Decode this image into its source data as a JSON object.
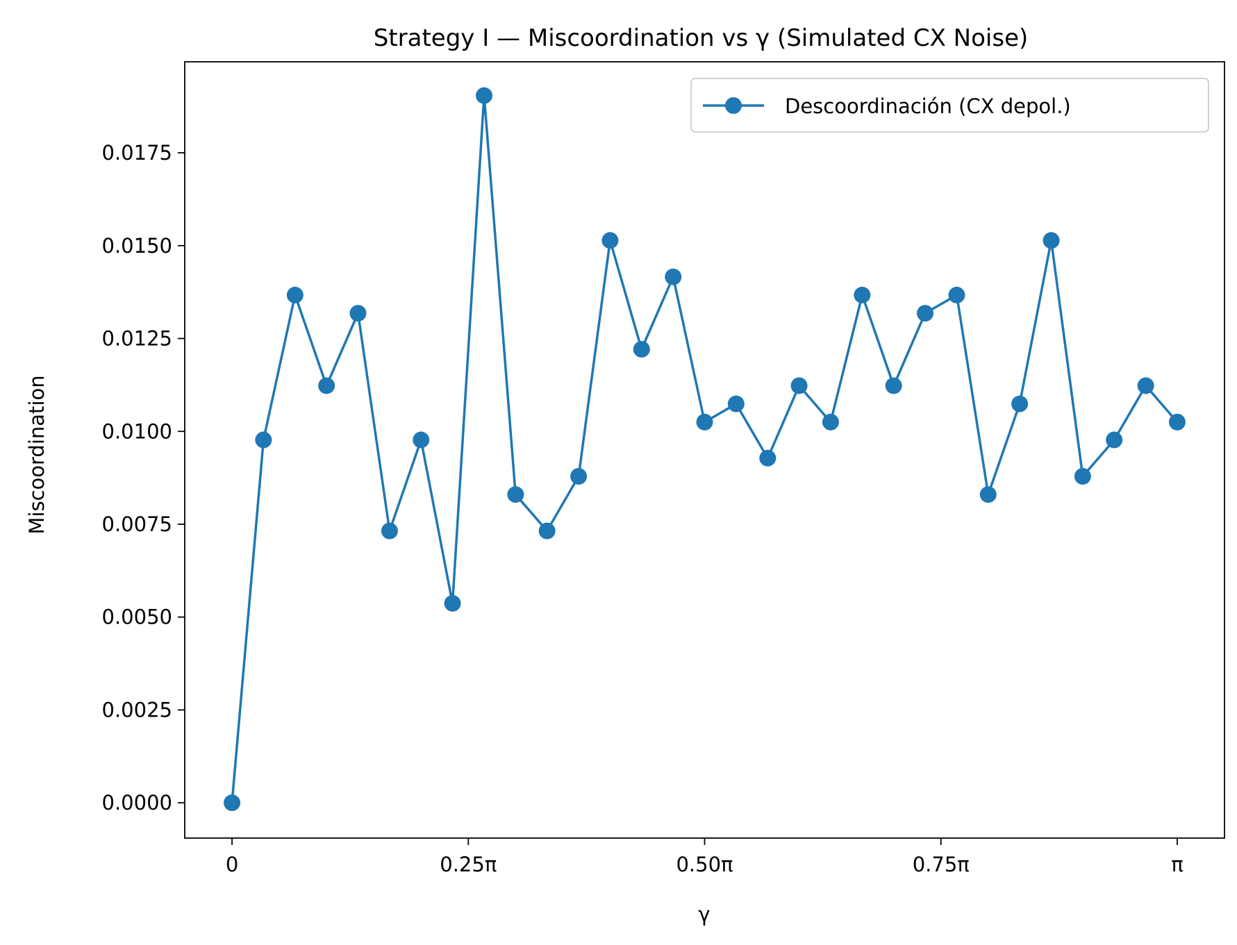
{
  "chart_data": {
    "type": "line",
    "title": "Strategy I — Miscoordination vs γ (Simulated CX Noise)",
    "xlabel": "γ",
    "ylabel": "Miscoordination",
    "x_unit": "π",
    "x_ticks": [
      {
        "value": 0,
        "label": "0"
      },
      {
        "value": 0.25,
        "label": "0.25π"
      },
      {
        "value": 0.5,
        "label": "0.50π"
      },
      {
        "value": 0.75,
        "label": "0.75π"
      },
      {
        "value": 1.0,
        "label": "π"
      }
    ],
    "y_ticks": [
      {
        "value": 0.0,
        "label": "0.0000"
      },
      {
        "value": 0.0025,
        "label": "0.0025"
      },
      {
        "value": 0.005,
        "label": "0.0050"
      },
      {
        "value": 0.0075,
        "label": "0.0075"
      },
      {
        "value": 0.01,
        "label": "0.0100"
      },
      {
        "value": 0.0125,
        "label": "0.0125"
      },
      {
        "value": 0.015,
        "label": "0.0150"
      },
      {
        "value": 0.0175,
        "label": "0.0175"
      }
    ],
    "xlim": [
      -0.05,
      1.05
    ],
    "ylim": [
      -0.00095,
      0.01995
    ],
    "grid": false,
    "legend_position": "top-right",
    "series": [
      {
        "name": "Descoordinación (CX depol.)",
        "color": "#1f77b4",
        "marker": "circle",
        "x": [
          0,
          0.0333,
          0.0667,
          0.1,
          0.1333,
          0.1667,
          0.2,
          0.2333,
          0.2667,
          0.3,
          0.3333,
          0.3667,
          0.4,
          0.4333,
          0.4667,
          0.5,
          0.5333,
          0.5667,
          0.6,
          0.6333,
          0.6667,
          0.7,
          0.7333,
          0.7667,
          0.8,
          0.8333,
          0.8667,
          0.9,
          0.9333,
          0.9667,
          1.0
        ],
        "values": [
          0.0,
          0.00977,
          0.01367,
          0.01123,
          0.01318,
          0.00732,
          0.00977,
          0.00537,
          0.01904,
          0.0083,
          0.00732,
          0.00879,
          0.01514,
          0.01221,
          0.01416,
          0.01025,
          0.01074,
          0.00928,
          0.01123,
          0.01025,
          0.01367,
          0.01123,
          0.01318,
          0.01367,
          0.0083,
          0.01074,
          0.01514,
          0.00879,
          0.00977,
          0.01123,
          0.01025
        ]
      }
    ]
  }
}
